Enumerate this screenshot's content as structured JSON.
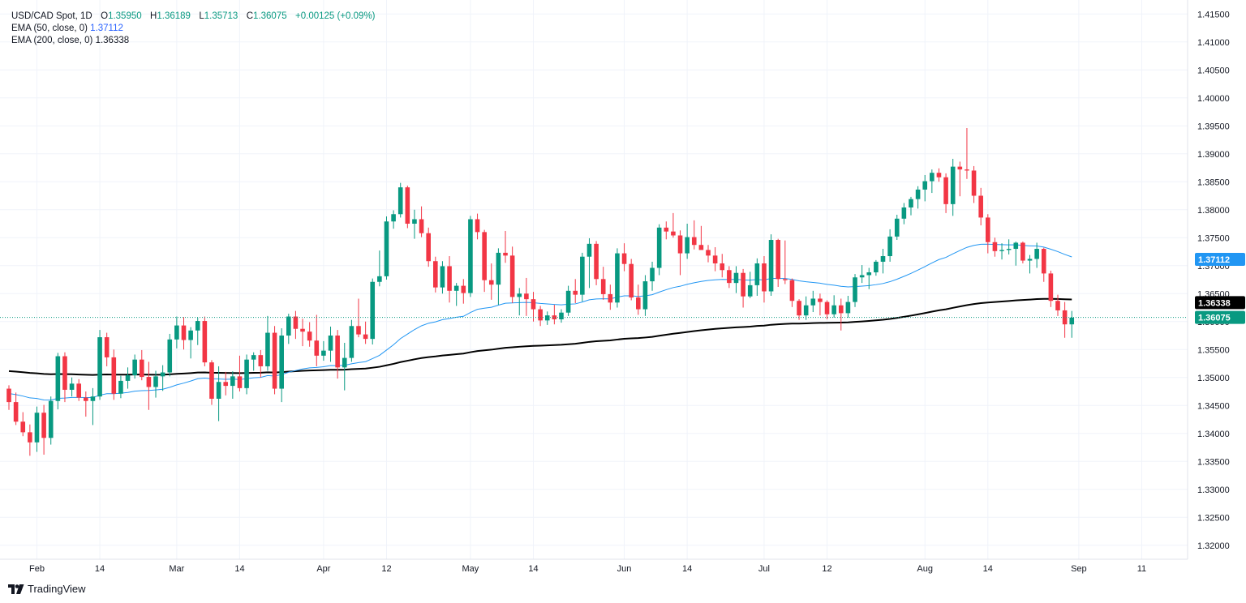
{
  "header": {
    "symbol": "USD/CAD Spot, 1D",
    "open_label": "O",
    "open": "1.35950",
    "high_label": "H",
    "high": "1.36189",
    "low_label": "L",
    "low": "1.35713",
    "close_label": "C",
    "close": "1.36075",
    "change": "+0.00125 (+0.09%)",
    "ema50_label": "EMA (50, close, 0)",
    "ema50_value": "1.37112",
    "ema200_label": "EMA (200, close, 0)",
    "ema200_value": "1.36338"
  },
  "brand": {
    "name": "TradingView"
  },
  "colors": {
    "up": "#089981",
    "down": "#f23645",
    "ema50": "#2196f3",
    "ema200": "#000000",
    "ema50_badge": "#2196f3",
    "price_badge": "#089981",
    "grid": "#f0f3fa",
    "axis_text": "#131722"
  },
  "chart_data": {
    "type": "candlestick",
    "title": "USD/CAD Spot, 1D",
    "ylim": [
      1.3175,
      1.4175
    ],
    "y_ticks": [
      "1.41500",
      "1.41000",
      "1.40500",
      "1.40000",
      "1.39500",
      "1.39000",
      "1.38500",
      "1.38000",
      "1.37500",
      "1.37000",
      "1.36500",
      "1.36000",
      "1.35500",
      "1.35000",
      "1.34500",
      "1.34000",
      "1.33500",
      "1.33000",
      "1.32500",
      "1.32000"
    ],
    "x_ticks": [
      {
        "label": "Feb",
        "index": 4
      },
      {
        "label": "14",
        "index": 13
      },
      {
        "label": "Mar",
        "index": 24
      },
      {
        "label": "14",
        "index": 33
      },
      {
        "label": "Apr",
        "index": 45
      },
      {
        "label": "12",
        "index": 54
      },
      {
        "label": "May",
        "index": 66
      },
      {
        "label": "14",
        "index": 75
      },
      {
        "label": "Jun",
        "index": 88
      },
      {
        "label": "14",
        "index": 97
      },
      {
        "label": "Jul",
        "index": 108
      },
      {
        "label": "12",
        "index": 117
      },
      {
        "label": "Aug",
        "index": 131
      },
      {
        "label": "14",
        "index": 140
      },
      {
        "label": "Sep",
        "index": 153
      },
      {
        "label": "11",
        "index": 162
      }
    ],
    "total_slots": 170,
    "last_price": "1.36075",
    "ema50_last": "1.37112",
    "ema200_last": "1.36338",
    "candles": [
      [
        1.348,
        1.3486,
        1.3442,
        1.3456
      ],
      [
        1.3456,
        1.3473,
        1.3415,
        1.3421
      ],
      [
        1.3421,
        1.3438,
        1.3395,
        1.3402
      ],
      [
        1.3402,
        1.3416,
        1.336,
        1.3384
      ],
      [
        1.3384,
        1.3448,
        1.3367,
        1.3437
      ],
      [
        1.3437,
        1.3451,
        1.3362,
        1.3392
      ],
      [
        1.3392,
        1.3466,
        1.338,
        1.3458
      ],
      [
        1.3458,
        1.3544,
        1.3443,
        1.3538
      ],
      [
        1.3538,
        1.3545,
        1.3456,
        1.3478
      ],
      [
        1.3478,
        1.35,
        1.3466,
        1.3489
      ],
      [
        1.3489,
        1.3497,
        1.3458,
        1.3464
      ],
      [
        1.3464,
        1.3475,
        1.343,
        1.3458
      ],
      [
        1.3458,
        1.3481,
        1.3415,
        1.3466
      ],
      [
        1.3466,
        1.3585,
        1.346,
        1.3572
      ],
      [
        1.3572,
        1.358,
        1.352,
        1.3536
      ],
      [
        1.3536,
        1.355,
        1.346,
        1.3471
      ],
      [
        1.3471,
        1.3503,
        1.3463,
        1.3494
      ],
      [
        1.3494,
        1.3518,
        1.348,
        1.3504
      ],
      [
        1.3504,
        1.3541,
        1.3498,
        1.3532
      ],
      [
        1.3532,
        1.3549,
        1.3495,
        1.3501
      ],
      [
        1.3501,
        1.3528,
        1.3442,
        1.3483
      ],
      [
        1.3483,
        1.3512,
        1.3464,
        1.3502
      ],
      [
        1.3502,
        1.3522,
        1.3476,
        1.3509
      ],
      [
        1.3509,
        1.3578,
        1.3502,
        1.3568
      ],
      [
        1.3568,
        1.3609,
        1.3552,
        1.3593
      ],
      [
        1.3593,
        1.3608,
        1.355,
        1.3567
      ],
      [
        1.3567,
        1.359,
        1.3534,
        1.3584
      ],
      [
        1.3584,
        1.3607,
        1.3558,
        1.3601
      ],
      [
        1.3601,
        1.3609,
        1.352,
        1.3527
      ],
      [
        1.3527,
        1.3531,
        1.3451,
        1.3462
      ],
      [
        1.3462,
        1.352,
        1.3422,
        1.3492
      ],
      [
        1.3492,
        1.351,
        1.3468,
        1.3485
      ],
      [
        1.3485,
        1.3511,
        1.3462,
        1.3502
      ],
      [
        1.3502,
        1.3539,
        1.3475,
        1.3481
      ],
      [
        1.3481,
        1.3541,
        1.347,
        1.3532
      ],
      [
        1.3532,
        1.3545,
        1.3512,
        1.354
      ],
      [
        1.354,
        1.3549,
        1.35,
        1.352
      ],
      [
        1.352,
        1.361,
        1.3512,
        1.358
      ],
      [
        1.358,
        1.3592,
        1.347,
        1.348
      ],
      [
        1.348,
        1.3588,
        1.3456,
        1.3575
      ],
      [
        1.3575,
        1.3614,
        1.356,
        1.3609
      ],
      [
        1.3609,
        1.3619,
        1.3569,
        1.3587
      ],
      [
        1.3587,
        1.3605,
        1.3556,
        1.3582
      ],
      [
        1.3582,
        1.3599,
        1.3555,
        1.3566
      ],
      [
        1.3566,
        1.3612,
        1.352,
        1.3539
      ],
      [
        1.3539,
        1.3565,
        1.353,
        1.3548
      ],
      [
        1.3548,
        1.3591,
        1.3528,
        1.3575
      ],
      [
        1.3575,
        1.3585,
        1.3498,
        1.3518
      ],
      [
        1.3518,
        1.3562,
        1.3477,
        1.3535
      ],
      [
        1.3535,
        1.3603,
        1.3528,
        1.3592
      ],
      [
        1.3592,
        1.3641,
        1.3572,
        1.3577
      ],
      [
        1.3577,
        1.36,
        1.356,
        1.3569
      ],
      [
        1.3569,
        1.3677,
        1.3559,
        1.3671
      ],
      [
        1.3671,
        1.3727,
        1.3663,
        1.3681
      ],
      [
        1.3681,
        1.3788,
        1.3675,
        1.3779
      ],
      [
        1.3779,
        1.3799,
        1.3766,
        1.3792
      ],
      [
        1.3792,
        1.3848,
        1.3786,
        1.384
      ],
      [
        1.384,
        1.3843,
        1.3767,
        1.3775
      ],
      [
        1.3775,
        1.38,
        1.3748,
        1.3783
      ],
      [
        1.3783,
        1.3806,
        1.3751,
        1.3758
      ],
      [
        1.3758,
        1.3768,
        1.3698,
        1.3708
      ],
      [
        1.3708,
        1.3716,
        1.3652,
        1.3661
      ],
      [
        1.3661,
        1.3708,
        1.365,
        1.3699
      ],
      [
        1.3699,
        1.3717,
        1.3634,
        1.3655
      ],
      [
        1.3655,
        1.3669,
        1.3628,
        1.3664
      ],
      [
        1.3664,
        1.3676,
        1.3632,
        1.3651
      ],
      [
        1.3651,
        1.3789,
        1.3644,
        1.3783
      ],
      [
        1.3783,
        1.3793,
        1.3747,
        1.376
      ],
      [
        1.376,
        1.3764,
        1.3653,
        1.3674
      ],
      [
        1.3674,
        1.3704,
        1.3639,
        1.3666
      ],
      [
        1.3666,
        1.3731,
        1.363,
        1.3723
      ],
      [
        1.3723,
        1.3762,
        1.3705,
        1.3718
      ],
      [
        1.3718,
        1.3734,
        1.3633,
        1.3644
      ],
      [
        1.3644,
        1.366,
        1.3611,
        1.365
      ],
      [
        1.365,
        1.3678,
        1.361,
        1.364
      ],
      [
        1.364,
        1.3653,
        1.36,
        1.3622
      ],
      [
        1.3622,
        1.3628,
        1.3592,
        1.3602
      ],
      [
        1.3602,
        1.3618,
        1.3594,
        1.3611
      ],
      [
        1.3611,
        1.363,
        1.3595,
        1.3604
      ],
      [
        1.3604,
        1.3622,
        1.3598,
        1.3616
      ],
      [
        1.3616,
        1.3664,
        1.361,
        1.3655
      ],
      [
        1.3655,
        1.3676,
        1.3633,
        1.3648
      ],
      [
        1.3648,
        1.3723,
        1.3636,
        1.3716
      ],
      [
        1.3716,
        1.3749,
        1.366,
        1.3739
      ],
      [
        1.3739,
        1.3744,
        1.3665,
        1.3676
      ],
      [
        1.3676,
        1.3698,
        1.3639,
        1.3649
      ],
      [
        1.3649,
        1.3666,
        1.3621,
        1.3634
      ],
      [
        1.3634,
        1.3731,
        1.3625,
        1.3722
      ],
      [
        1.3722,
        1.374,
        1.369,
        1.3703
      ],
      [
        1.3703,
        1.3712,
        1.3638,
        1.3643
      ],
      [
        1.3643,
        1.3666,
        1.3612,
        1.3622
      ],
      [
        1.3622,
        1.3683,
        1.361,
        1.3672
      ],
      [
        1.3672,
        1.3707,
        1.3655,
        1.3696
      ],
      [
        1.3696,
        1.3774,
        1.3683,
        1.3768
      ],
      [
        1.3768,
        1.3779,
        1.3747,
        1.3761
      ],
      [
        1.3761,
        1.3794,
        1.375,
        1.3754
      ],
      [
        1.3754,
        1.3763,
        1.3683,
        1.3722
      ],
      [
        1.3722,
        1.3775,
        1.3712,
        1.3751
      ],
      [
        1.3751,
        1.3781,
        1.3729,
        1.3737
      ],
      [
        1.3737,
        1.3771,
        1.3729,
        1.3728
      ],
      [
        1.3728,
        1.3737,
        1.3706,
        1.3718
      ],
      [
        1.3718,
        1.3733,
        1.369,
        1.3704
      ],
      [
        1.3704,
        1.3721,
        1.3679,
        1.3692
      ],
      [
        1.3692,
        1.3699,
        1.366,
        1.3669
      ],
      [
        1.3669,
        1.3699,
        1.3651,
        1.3687
      ],
      [
        1.3687,
        1.3694,
        1.3625,
        1.3645
      ],
      [
        1.3645,
        1.3689,
        1.3642,
        1.3665
      ],
      [
        1.3665,
        1.3713,
        1.3646,
        1.3704
      ],
      [
        1.3704,
        1.3717,
        1.3634,
        1.3654
      ],
      [
        1.3654,
        1.3756,
        1.3646,
        1.3746
      ],
      [
        1.3746,
        1.3748,
        1.3662,
        1.3676
      ],
      [
        1.3676,
        1.3745,
        1.3667,
        1.3674
      ],
      [
        1.3674,
        1.3677,
        1.3626,
        1.3637
      ],
      [
        1.3637,
        1.364,
        1.3603,
        1.3611
      ],
      [
        1.3611,
        1.3645,
        1.3603,
        1.3629
      ],
      [
        1.3629,
        1.3655,
        1.3617,
        1.3641
      ],
      [
        1.3641,
        1.365,
        1.3611,
        1.3635
      ],
      [
        1.3635,
        1.3638,
        1.3604,
        1.3613
      ],
      [
        1.3613,
        1.3647,
        1.3607,
        1.3629
      ],
      [
        1.3629,
        1.3641,
        1.3584,
        1.3615
      ],
      [
        1.3615,
        1.3646,
        1.3607,
        1.3635
      ],
      [
        1.3635,
        1.3685,
        1.3626,
        1.3679
      ],
      [
        1.3679,
        1.3701,
        1.3669,
        1.3683
      ],
      [
        1.3683,
        1.3696,
        1.3658,
        1.3688
      ],
      [
        1.3688,
        1.371,
        1.3682,
        1.3707
      ],
      [
        1.3707,
        1.373,
        1.3686,
        1.3717
      ],
      [
        1.3717,
        1.3765,
        1.3707,
        1.3752
      ],
      [
        1.3752,
        1.3791,
        1.3746,
        1.3784
      ],
      [
        1.3784,
        1.3812,
        1.3774,
        1.3804
      ],
      [
        1.3804,
        1.3823,
        1.379,
        1.3819
      ],
      [
        1.3819,
        1.3842,
        1.3802,
        1.3836
      ],
      [
        1.3836,
        1.3862,
        1.3815,
        1.3851
      ],
      [
        1.3851,
        1.3872,
        1.383,
        1.3866
      ],
      [
        1.3866,
        1.3874,
        1.385,
        1.3858
      ],
      [
        1.3858,
        1.3865,
        1.3794,
        1.381
      ],
      [
        1.381,
        1.3891,
        1.3789,
        1.3877
      ],
      [
        1.3877,
        1.3886,
        1.3824,
        1.3872
      ],
      [
        1.3872,
        1.3946,
        1.3855,
        1.387
      ],
      [
        1.387,
        1.3878,
        1.3812,
        1.3825
      ],
      [
        1.3825,
        1.3839,
        1.3772,
        1.3786
      ],
      [
        1.3786,
        1.3792,
        1.3722,
        1.3742
      ],
      [
        1.3742,
        1.375,
        1.3716,
        1.3726
      ],
      [
        1.3726,
        1.374,
        1.3711,
        1.3728
      ],
      [
        1.3728,
        1.3747,
        1.372,
        1.373
      ],
      [
        1.373,
        1.3743,
        1.37,
        1.3741
      ],
      [
        1.3741,
        1.3743,
        1.3704,
        1.3709
      ],
      [
        1.3709,
        1.3719,
        1.3686,
        1.3712
      ],
      [
        1.3712,
        1.3741,
        1.3696,
        1.373
      ],
      [
        1.373,
        1.3732,
        1.3671,
        1.3686
      ],
      [
        1.3686,
        1.3691,
        1.3626,
        1.3637
      ],
      [
        1.3637,
        1.3648,
        1.361,
        1.362
      ],
      [
        1.362,
        1.3635,
        1.3571,
        1.3595
      ],
      [
        1.3595,
        1.3619,
        1.3571,
        1.3607
      ]
    ]
  }
}
